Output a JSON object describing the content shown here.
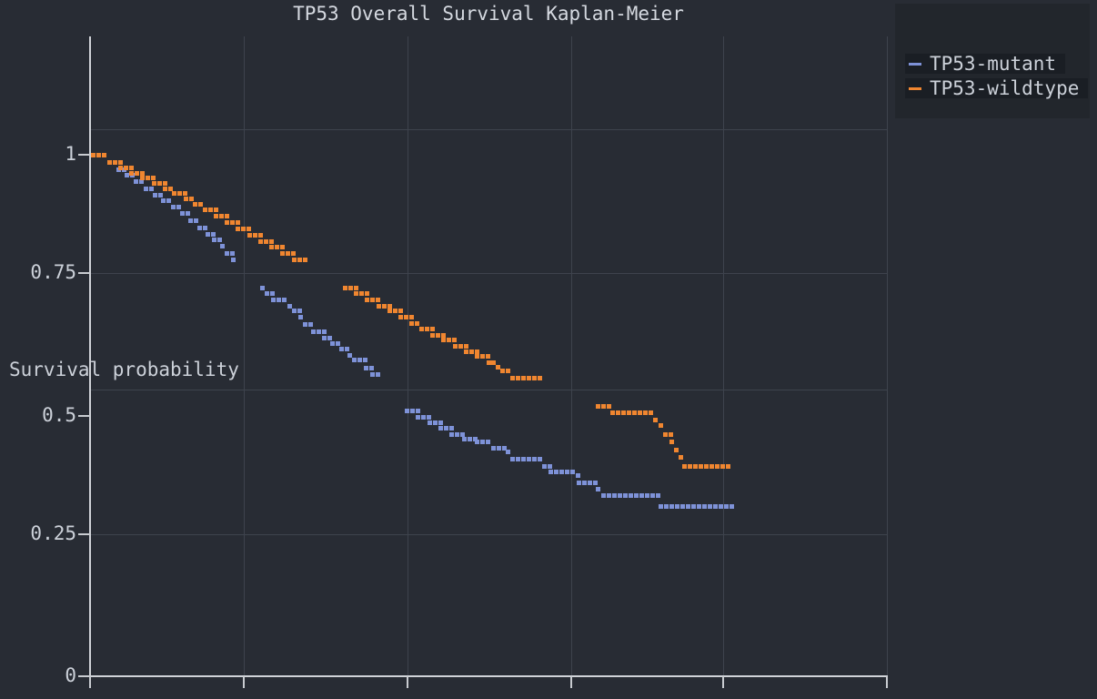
{
  "title": "TP53 Overall Survival Kaplan-Meier",
  "y_axis": {
    "label": "Survival probability",
    "ticks": [
      "1",
      "0.75",
      "0.5",
      "0.25",
      "0"
    ],
    "tick_values": [
      1,
      0.75,
      0.5,
      0.25,
      0
    ]
  },
  "x_axis": {
    "label": "",
    "note": "x tick labels are cropped out of the screenshot; 6 tick marks / vertical gridlines visible",
    "tick_count": 6
  },
  "legend": {
    "entries": [
      {
        "label": "TP53-mutant",
        "color": "#7e92d8"
      },
      {
        "label": "TP53-wildtype",
        "color": "#f08630"
      }
    ]
  },
  "colors": {
    "background": "#282c34",
    "panel_text": "#ccd1d9",
    "gridline": "#3e434d",
    "axis": "#d0d3d8",
    "legend_panel": "#22262c",
    "legend_row": "#1a1e24",
    "mutant": "#7e92d8",
    "wildtype": "#f08630"
  },
  "chart_data": {
    "type": "scatter",
    "subtype": "kaplan-meier-step-markers",
    "title": "TP53 Overall Survival Kaplan-Meier",
    "xlabel": "",
    "ylabel": "Survival probability",
    "ylim": [
      0,
      1.05
    ],
    "x_units": "axis gridline intervals (0 = y-axis, 5 = right edge); numeric x tick labels not visible in screenshot",
    "grid": true,
    "legend_position": "top-right",
    "series": [
      {
        "name": "TP53-mutant",
        "color": "#7e92d8",
        "segments": [
          {
            "steps": [
              [
                0.18,
                0.972
              ],
              [
                0.23,
                0.96
              ],
              [
                0.29,
                0.948
              ],
              [
                0.35,
                0.935
              ],
              [
                0.41,
                0.923
              ],
              [
                0.46,
                0.911
              ],
              [
                0.52,
                0.899
              ],
              [
                0.58,
                0.887
              ],
              [
                0.63,
                0.873
              ],
              [
                0.69,
                0.86
              ],
              [
                0.74,
                0.848
              ],
              [
                0.78,
                0.836
              ],
              [
                0.83,
                0.824
              ],
              [
                0.86,
                0.811
              ],
              [
                0.9,
                0.799
              ]
            ],
            "until": 0.93
          },
          {
            "steps": [
              [
                1.08,
                0.745
              ],
              [
                1.11,
                0.733
              ],
              [
                1.15,
                0.721
              ],
              [
                1.25,
                0.709
              ],
              [
                1.28,
                0.7
              ],
              [
                1.32,
                0.688
              ],
              [
                1.35,
                0.675
              ],
              [
                1.4,
                0.661
              ],
              [
                1.47,
                0.649
              ],
              [
                1.52,
                0.637
              ],
              [
                1.58,
                0.628
              ],
              [
                1.63,
                0.616
              ],
              [
                1.66,
                0.606
              ],
              [
                1.73,
                0.59
              ],
              [
                1.77,
                0.579
              ]
            ],
            "until": 1.81
          },
          {
            "steps": [
              [
                1.99,
                0.508
              ],
              [
                2.06,
                0.497
              ],
              [
                2.13,
                0.486
              ],
              [
                2.2,
                0.475
              ],
              [
                2.27,
                0.464
              ],
              [
                2.35,
                0.454
              ],
              [
                2.43,
                0.449
              ],
              [
                2.53,
                0.438
              ],
              [
                2.62,
                0.431
              ],
              [
                2.65,
                0.417
              ],
              [
                2.85,
                0.403
              ],
              [
                2.89,
                0.391
              ],
              [
                3.06,
                0.384
              ],
              [
                3.07,
                0.37
              ],
              [
                3.19,
                0.358
              ],
              [
                3.22,
                0.347
              ],
              [
                3.58,
                0.325
              ]
            ],
            "until": 4.03
          }
        ]
      },
      {
        "name": "TP53-wildtype",
        "color": "#f08630",
        "segments": [
          {
            "steps": [
              [
                0.02,
                1.0
              ],
              [
                0.12,
                0.985
              ],
              [
                0.19,
                0.975
              ],
              [
                0.26,
                0.965
              ],
              [
                0.33,
                0.955
              ],
              [
                0.4,
                0.945
              ],
              [
                0.47,
                0.935
              ],
              [
                0.53,
                0.925
              ],
              [
                0.6,
                0.915
              ],
              [
                0.66,
                0.905
              ],
              [
                0.72,
                0.895
              ],
              [
                0.79,
                0.882
              ],
              [
                0.86,
                0.87
              ],
              [
                0.93,
                0.858
              ],
              [
                1.0,
                0.845
              ],
              [
                1.07,
                0.833
              ],
              [
                1.14,
                0.822
              ],
              [
                1.21,
                0.81
              ],
              [
                1.28,
                0.799
              ]
            ],
            "until": 1.38
          },
          {
            "steps": [
              [
                1.6,
                0.745
              ],
              [
                1.67,
                0.733
              ],
              [
                1.74,
                0.721
              ],
              [
                1.81,
                0.709
              ],
              [
                1.88,
                0.7
              ],
              [
                1.95,
                0.688
              ],
              [
                2.02,
                0.676
              ],
              [
                2.08,
                0.665
              ],
              [
                2.15,
                0.654
              ],
              [
                2.22,
                0.644
              ],
              [
                2.29,
                0.633
              ],
              [
                2.36,
                0.623
              ],
              [
                2.43,
                0.613
              ],
              [
                2.5,
                0.602
              ],
              [
                2.56,
                0.592
              ],
              [
                2.59,
                0.585
              ],
              [
                2.65,
                0.571
              ]
            ],
            "until": 2.84
          },
          {
            "steps": [
              [
                3.19,
                0.518
              ],
              [
                3.28,
                0.506
              ],
              [
                3.55,
                0.492
              ],
              [
                3.58,
                0.48
              ],
              [
                3.61,
                0.464
              ],
              [
                3.65,
                0.449
              ],
              [
                3.68,
                0.433
              ],
              [
                3.71,
                0.419
              ],
              [
                3.73,
                0.403
              ]
            ],
            "until": 4.03
          }
        ]
      }
    ]
  }
}
